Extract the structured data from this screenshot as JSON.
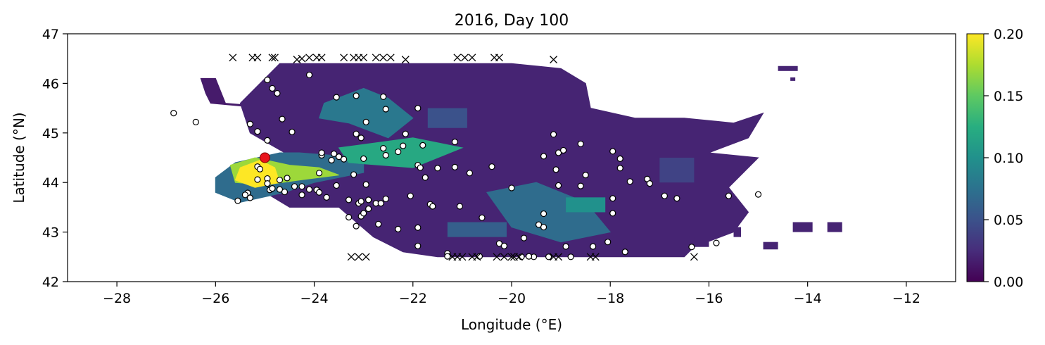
{
  "chart_data": {
    "type": "heatmap",
    "title": "2016, Day 100",
    "xlabel": "Longitude (°E)",
    "ylabel": "Latitude (°N)",
    "xlim": [
      -29,
      -11
    ],
    "ylim": [
      42,
      47
    ],
    "x_ticks": [
      {
        "value": -28,
        "label": "−28"
      },
      {
        "value": -26,
        "label": "−26"
      },
      {
        "value": -24,
        "label": "−24"
      },
      {
        "value": -22,
        "label": "−22"
      },
      {
        "value": -20,
        "label": "−20"
      },
      {
        "value": -18,
        "label": "−18"
      },
      {
        "value": -16,
        "label": "−16"
      },
      {
        "value": -14,
        "label": "−14"
      },
      {
        "value": -12,
        "label": "−12"
      }
    ],
    "y_ticks": [
      {
        "value": 42,
        "label": "42"
      },
      {
        "value": 43,
        "label": "43"
      },
      {
        "value": 44,
        "label": "44"
      },
      {
        "value": 45,
        "label": "45"
      },
      {
        "value": 46,
        "label": "46"
      },
      {
        "value": 47,
        "label": "47"
      }
    ],
    "colorbar": {
      "colormap": "viridis",
      "range": [
        0.0,
        0.2
      ],
      "ticks": [
        {
          "value": 0.0,
          "label": "0.00"
        },
        {
          "value": 0.05,
          "label": "0.05"
        },
        {
          "value": 0.1,
          "label": "0.10"
        },
        {
          "value": 0.15,
          "label": "0.15"
        },
        {
          "value": 0.2,
          "label": "0.20"
        }
      ]
    },
    "grid": false,
    "density_regions": [
      {
        "polygon": [
          [
            -26.3,
            46.1
          ],
          [
            -26.0,
            46.1
          ],
          [
            -25.8,
            45.6
          ],
          [
            -25.2,
            45.55
          ],
          [
            -25.0,
            45.5
          ],
          [
            -26.1,
            45.6
          ],
          [
            -26.2,
            45.8
          ]
        ],
        "value": 0.015
      },
      {
        "polygon": [
          [
            -25.5,
            45.6
          ],
          [
            -24.7,
            46.4
          ],
          [
            -23.5,
            46.4
          ],
          [
            -22.0,
            46.4
          ],
          [
            -21.0,
            46.4
          ],
          [
            -20.0,
            46.4
          ],
          [
            -19.0,
            46.3
          ],
          [
            -18.5,
            46.0
          ],
          [
            -18.4,
            45.5
          ],
          [
            -17.5,
            45.3
          ],
          [
            -16.5,
            45.3
          ],
          [
            -15.5,
            45.2
          ],
          [
            -14.9,
            45.4
          ],
          [
            -15.2,
            44.9
          ],
          [
            -16.0,
            44.6
          ],
          [
            -15.0,
            44.5
          ],
          [
            -15.6,
            43.9
          ],
          [
            -15.2,
            43.4
          ],
          [
            -15.5,
            43.0
          ],
          [
            -16.3,
            42.7
          ],
          [
            -16.5,
            42.5
          ],
          [
            -19.0,
            42.5
          ],
          [
            -21.5,
            42.5
          ],
          [
            -22.2,
            42.6
          ],
          [
            -22.8,
            42.9
          ],
          [
            -23.5,
            43.5
          ],
          [
            -24.5,
            43.5
          ],
          [
            -25.0,
            43.8
          ],
          [
            -25.6,
            43.7
          ],
          [
            -25.8,
            44.1
          ],
          [
            -25.4,
            44.4
          ],
          [
            -24.6,
            44.6
          ],
          [
            -25.3,
            45.0
          ]
        ],
        "value": 0.02
      },
      {
        "polygon": [
          [
            -26.0,
            44.1
          ],
          [
            -25.6,
            44.4
          ],
          [
            -24.7,
            44.6
          ],
          [
            -24.3,
            44.6
          ],
          [
            -23.0,
            44.5
          ],
          [
            -23.0,
            44.2
          ],
          [
            -24.0,
            44.0
          ],
          [
            -24.6,
            43.8
          ],
          [
            -25.5,
            43.6
          ],
          [
            -26.0,
            43.8
          ]
        ],
        "value": 0.07
      },
      {
        "polygon": [
          [
            -23.8,
            45.6
          ],
          [
            -23.0,
            45.9
          ],
          [
            -22.5,
            45.7
          ],
          [
            -22.0,
            45.3
          ],
          [
            -22.5,
            44.9
          ],
          [
            -23.3,
            45.2
          ],
          [
            -23.9,
            45.3
          ]
        ],
        "value": 0.08
      },
      {
        "polygon": [
          [
            -23.5,
            44.7
          ],
          [
            -22.0,
            44.9
          ],
          [
            -21.0,
            44.7
          ],
          [
            -22.0,
            44.3
          ],
          [
            -23.3,
            44.4
          ]
        ],
        "value": 0.12
      },
      {
        "polygon": [
          [
            -20.5,
            43.8
          ],
          [
            -19.5,
            44.0
          ],
          [
            -18.5,
            43.6
          ],
          [
            -18.0,
            43.0
          ],
          [
            -19.0,
            42.8
          ],
          [
            -20.0,
            43.1
          ]
        ],
        "value": 0.07
      },
      {
        "polygon": [
          [
            -25.7,
            44.35
          ],
          [
            -25.2,
            44.5
          ],
          [
            -24.5,
            44.35
          ],
          [
            -23.9,
            44.3
          ],
          [
            -23.5,
            44.15
          ],
          [
            -24.3,
            44.05
          ],
          [
            -25.0,
            43.95
          ],
          [
            -25.6,
            44.0
          ]
        ],
        "value": 0.17
      },
      {
        "polygon": [
          [
            -25.5,
            44.3
          ],
          [
            -25.1,
            44.45
          ],
          [
            -24.8,
            44.3
          ],
          [
            -24.7,
            44.0
          ],
          [
            -25.2,
            43.9
          ],
          [
            -25.6,
            44.05
          ]
        ],
        "value": 0.2
      }
    ],
    "density_patches": [
      {
        "x": -21.3,
        "y": 42.9,
        "w": 1.2,
        "h": 0.3,
        "value": 0.06
      },
      {
        "x": -18.9,
        "y": 43.4,
        "w": 0.8,
        "h": 0.3,
        "value": 0.1
      },
      {
        "x": -21.7,
        "y": 45.1,
        "w": 0.8,
        "h": 0.4,
        "value": 0.05
      },
      {
        "x": -17.0,
        "y": 44.0,
        "w": 0.7,
        "h": 0.5,
        "value": 0.04
      },
      {
        "x": -16.3,
        "y": 42.7,
        "w": 0.3,
        "h": 0.2,
        "value": 0.02
      },
      {
        "x": -14.6,
        "y": 46.25,
        "w": 0.4,
        "h": 0.1,
        "value": 0.02
      },
      {
        "x": -14.9,
        "y": 42.65,
        "w": 0.3,
        "h": 0.15,
        "value": 0.02
      },
      {
        "x": -14.3,
        "y": 43.0,
        "w": 0.4,
        "h": 0.2,
        "value": 0.02
      },
      {
        "x": -13.6,
        "y": 43.0,
        "w": 0.3,
        "h": 0.2,
        "value": 0.02
      },
      {
        "x": -15.5,
        "y": 42.9,
        "w": 0.15,
        "h": 0.2,
        "value": 0.02
      },
      {
        "x": -14.35,
        "y": 46.05,
        "w": 0.1,
        "h": 0.07,
        "value": 0.02
      }
    ],
    "release_point": {
      "lon": -25.0,
      "lat": 44.5
    },
    "particles_active": [
      [
        -26.85,
        45.4
      ],
      [
        -26.4,
        45.22
      ],
      [
        -25.3,
        45.18
      ],
      [
        -25.15,
        45.03
      ],
      [
        -24.95,
        44.85
      ],
      [
        -24.65,
        45.28
      ],
      [
        -24.45,
        45.02
      ],
      [
        -24.1,
        46.17
      ],
      [
        -24.95,
        46.07
      ],
      [
        -24.85,
        45.9
      ],
      [
        -24.75,
        45.8
      ],
      [
        -23.55,
        45.72
      ],
      [
        -23.15,
        45.75
      ],
      [
        -22.6,
        45.73
      ],
      [
        -22.55,
        45.48
      ],
      [
        -21.9,
        45.5
      ],
      [
        -23.15,
        44.98
      ],
      [
        -23.05,
        44.9
      ],
      [
        -22.95,
        45.22
      ],
      [
        -22.15,
        44.98
      ],
      [
        -21.8,
        44.75
      ],
      [
        -21.15,
        44.82
      ],
      [
        -22.6,
        44.69
      ],
      [
        -22.55,
        44.55
      ],
      [
        -22.3,
        44.62
      ],
      [
        -22.2,
        44.74
      ],
      [
        -23.85,
        44.55
      ],
      [
        -23.85,
        44.6
      ],
      [
        -23.6,
        44.58
      ],
      [
        -23.5,
        44.52
      ],
      [
        -23.4,
        44.47
      ],
      [
        -23.65,
        44.45
      ],
      [
        -23.0,
        44.48
      ],
      [
        -25.15,
        44.32
      ],
      [
        -25.1,
        44.27
      ],
      [
        -23.9,
        44.19
      ],
      [
        -23.2,
        44.16
      ],
      [
        -21.9,
        44.35
      ],
      [
        -21.85,
        44.3
      ],
      [
        -21.75,
        44.1
      ],
      [
        -21.5,
        44.29
      ],
      [
        -21.15,
        44.31
      ],
      [
        -20.85,
        44.19
      ],
      [
        -20.4,
        44.32
      ],
      [
        -20.0,
        43.89
      ],
      [
        -25.15,
        44.06
      ],
      [
        -24.95,
        44.08
      ],
      [
        -24.7,
        44.05
      ],
      [
        -24.55,
        44.09
      ],
      [
        -24.95,
        43.98
      ],
      [
        -24.9,
        43.85
      ],
      [
        -24.85,
        43.88
      ],
      [
        -24.7,
        43.86
      ],
      [
        -24.6,
        43.81
      ],
      [
        -24.4,
        43.92
      ],
      [
        -24.25,
        43.92
      ],
      [
        -24.25,
        43.75
      ],
      [
        -24.1,
        43.86
      ],
      [
        -23.95,
        43.85
      ],
      [
        -23.9,
        43.8
      ],
      [
        -23.55,
        43.94
      ],
      [
        -25.35,
        43.79
      ],
      [
        -25.4,
        43.75
      ],
      [
        -25.3,
        43.69
      ],
      [
        -25.55,
        43.63
      ],
      [
        -23.75,
        43.7
      ],
      [
        -23.3,
        43.65
      ],
      [
        -23.1,
        43.58
      ],
      [
        -23.05,
        43.62
      ],
      [
        -22.9,
        43.65
      ],
      [
        -22.75,
        43.58
      ],
      [
        -22.65,
        43.58
      ],
      [
        -22.55,
        43.67
      ],
      [
        -22.05,
        43.73
      ],
      [
        -21.65,
        43.56
      ],
      [
        -21.6,
        43.52
      ],
      [
        -21.05,
        43.52
      ],
      [
        -22.95,
        43.96
      ],
      [
        -23.3,
        43.3
      ],
      [
        -23.05,
        43.32
      ],
      [
        -23.0,
        43.38
      ],
      [
        -22.9,
        43.47
      ],
      [
        -22.7,
        43.16
      ],
      [
        -22.3,
        43.06
      ],
      [
        -21.9,
        43.09
      ],
      [
        -20.6,
        43.29
      ],
      [
        -23.15,
        43.12
      ],
      [
        -21.9,
        42.72
      ],
      [
        -19.15,
        44.97
      ],
      [
        -19.05,
        44.6
      ],
      [
        -18.95,
        44.65
      ],
      [
        -19.35,
        44.53
      ],
      [
        -18.6,
        44.78
      ],
      [
        -17.95,
        44.63
      ],
      [
        -17.8,
        44.48
      ],
      [
        -17.8,
        44.29
      ],
      [
        -19.1,
        44.26
      ],
      [
        -19.05,
        43.94
      ],
      [
        -18.5,
        44.15
      ],
      [
        -18.6,
        43.93
      ],
      [
        -17.6,
        44.02
      ],
      [
        -17.25,
        44.07
      ],
      [
        -17.2,
        43.98
      ],
      [
        -16.9,
        43.73
      ],
      [
        -16.65,
        43.68
      ],
      [
        -15.6,
        43.73
      ],
      [
        -17.95,
        43.68
      ],
      [
        -17.95,
        43.38
      ],
      [
        -19.35,
        43.37
      ],
      [
        -19.45,
        43.15
      ],
      [
        -19.35,
        43.1
      ],
      [
        -19.75,
        42.88
      ],
      [
        -20.25,
        42.77
      ],
      [
        -20.15,
        42.72
      ],
      [
        -18.9,
        42.71
      ],
      [
        -18.35,
        42.71
      ],
      [
        -18.05,
        42.8
      ],
      [
        -17.7,
        42.6
      ],
      [
        -16.35,
        42.7
      ],
      [
        -15.85,
        42.78
      ],
      [
        -15.0,
        43.76
      ],
      [
        -21.3,
        42.57
      ],
      [
        -21.3,
        42.51
      ],
      [
        -20.65,
        42.51
      ],
      [
        -19.8,
        42.5
      ],
      [
        -19.55,
        42.5
      ],
      [
        -19.25,
        42.5
      ],
      [
        -18.8,
        42.5
      ],
      [
        -19.65,
        42.51
      ]
    ],
    "particles_beached": [
      [
        -25.65,
        46.52
      ],
      [
        -25.25,
        46.52
      ],
      [
        -25.15,
        46.52
      ],
      [
        -24.85,
        46.52
      ],
      [
        -24.8,
        46.52
      ],
      [
        -24.35,
        46.48
      ],
      [
        -24.25,
        46.5
      ],
      [
        -24.1,
        46.52
      ],
      [
        -23.95,
        46.52
      ],
      [
        -23.85,
        46.52
      ],
      [
        -23.4,
        46.52
      ],
      [
        -23.2,
        46.52
      ],
      [
        -23.1,
        46.52
      ],
      [
        -23.0,
        46.52
      ],
      [
        -22.75,
        46.52
      ],
      [
        -22.6,
        46.52
      ],
      [
        -22.45,
        46.52
      ],
      [
        -22.15,
        46.48
      ],
      [
        -21.1,
        46.52
      ],
      [
        -20.95,
        46.52
      ],
      [
        -20.8,
        46.52
      ],
      [
        -20.35,
        46.52
      ],
      [
        -20.25,
        46.52
      ],
      [
        -19.15,
        46.48
      ],
      [
        -23.25,
        42.5
      ],
      [
        -23.1,
        42.5
      ],
      [
        -22.95,
        42.5
      ],
      [
        -21.2,
        42.5
      ],
      [
        -21.1,
        42.5
      ],
      [
        -21.0,
        42.5
      ],
      [
        -20.8,
        42.5
      ],
      [
        -20.7,
        42.5
      ],
      [
        -20.3,
        42.5
      ],
      [
        -20.15,
        42.5
      ],
      [
        -20.0,
        42.5
      ],
      [
        -19.95,
        42.5
      ],
      [
        -19.85,
        42.5
      ],
      [
        -19.15,
        42.5
      ],
      [
        -19.05,
        42.5
      ],
      [
        -18.4,
        42.5
      ],
      [
        -18.3,
        42.5
      ],
      [
        -16.3,
        42.5
      ]
    ]
  }
}
